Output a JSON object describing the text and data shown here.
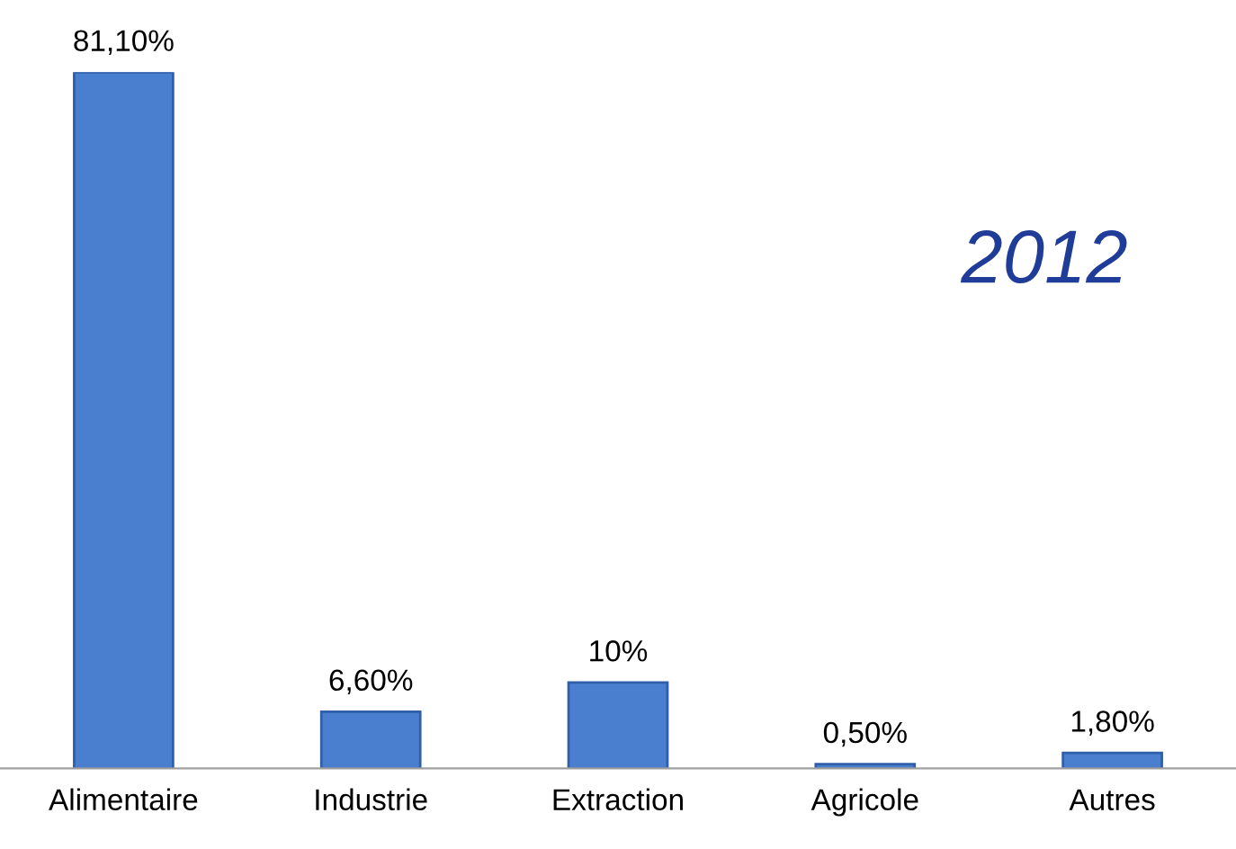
{
  "chart_data": {
    "type": "bar",
    "categories": [
      "Alimentaire",
      "Industrie",
      "Extraction",
      "Agricole",
      "Autres"
    ],
    "values": [
      81.1,
      6.6,
      10,
      0.5,
      1.8
    ],
    "value_labels": [
      "81,10%",
      "6,60%",
      "10%",
      "0,50%",
      "1,80%"
    ],
    "color": "#4a7fd0",
    "annotations": [
      "2012"
    ],
    "tick_labels": "x",
    "grid": false,
    "legend": false
  }
}
